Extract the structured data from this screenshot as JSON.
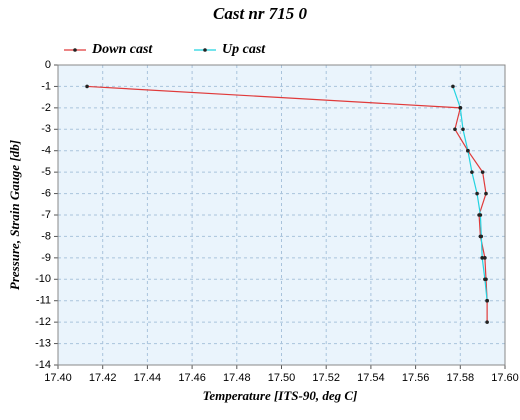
{
  "chart_data": {
    "type": "line",
    "title": "Cast nr 715 0",
    "x_label": "Temperature [ITS-90, deg C]",
    "y_label": "Pressure, Strain Gauge [db]",
    "xlim": [
      17.4,
      17.6
    ],
    "xticks": [
      {
        "value": 17.4,
        "label": "17.40"
      },
      {
        "value": 17.42,
        "label": "17.42"
      },
      {
        "value": 17.44,
        "label": "17.44"
      },
      {
        "value": 17.46,
        "label": "17.46"
      },
      {
        "value": 17.48,
        "label": "17.48"
      },
      {
        "value": 17.5,
        "label": "17.50"
      },
      {
        "value": 17.52,
        "label": "17.52"
      },
      {
        "value": 17.54,
        "label": "17.54"
      },
      {
        "value": 17.56,
        "label": "17.56"
      },
      {
        "value": 17.58,
        "label": "17.58"
      },
      {
        "value": 17.6,
        "label": "17.60"
      }
    ],
    "ylim": [
      -14,
      0
    ],
    "yticks": [
      0,
      -1,
      -2,
      -3,
      -4,
      -5,
      -6,
      -7,
      -8,
      -9,
      -10,
      -11,
      -12,
      -13,
      -14
    ],
    "grid": true,
    "legend": "top-left",
    "series": [
      {
        "name": "Down cast",
        "color": "#e03a3a",
        "x": [
          17.413,
          17.58,
          17.5776,
          17.5834,
          17.59,
          17.5915,
          17.5884,
          17.589,
          17.591,
          17.5915,
          17.592,
          17.592
        ],
        "values": [
          -1,
          -2,
          -3,
          -4,
          -5,
          -6,
          -7,
          -8,
          -9,
          -10,
          -11,
          -12
        ]
      },
      {
        "name": "Up cast",
        "color": "#22d3e0",
        "x": [
          17.5767,
          17.58,
          17.5812,
          17.5834,
          17.5852,
          17.5875,
          17.589,
          17.5894,
          17.5898,
          17.591,
          17.592
        ],
        "values": [
          -1,
          -2,
          -3,
          -4,
          -5,
          -6,
          -7,
          -8,
          -9,
          -10,
          -11
        ]
      }
    ]
  }
}
